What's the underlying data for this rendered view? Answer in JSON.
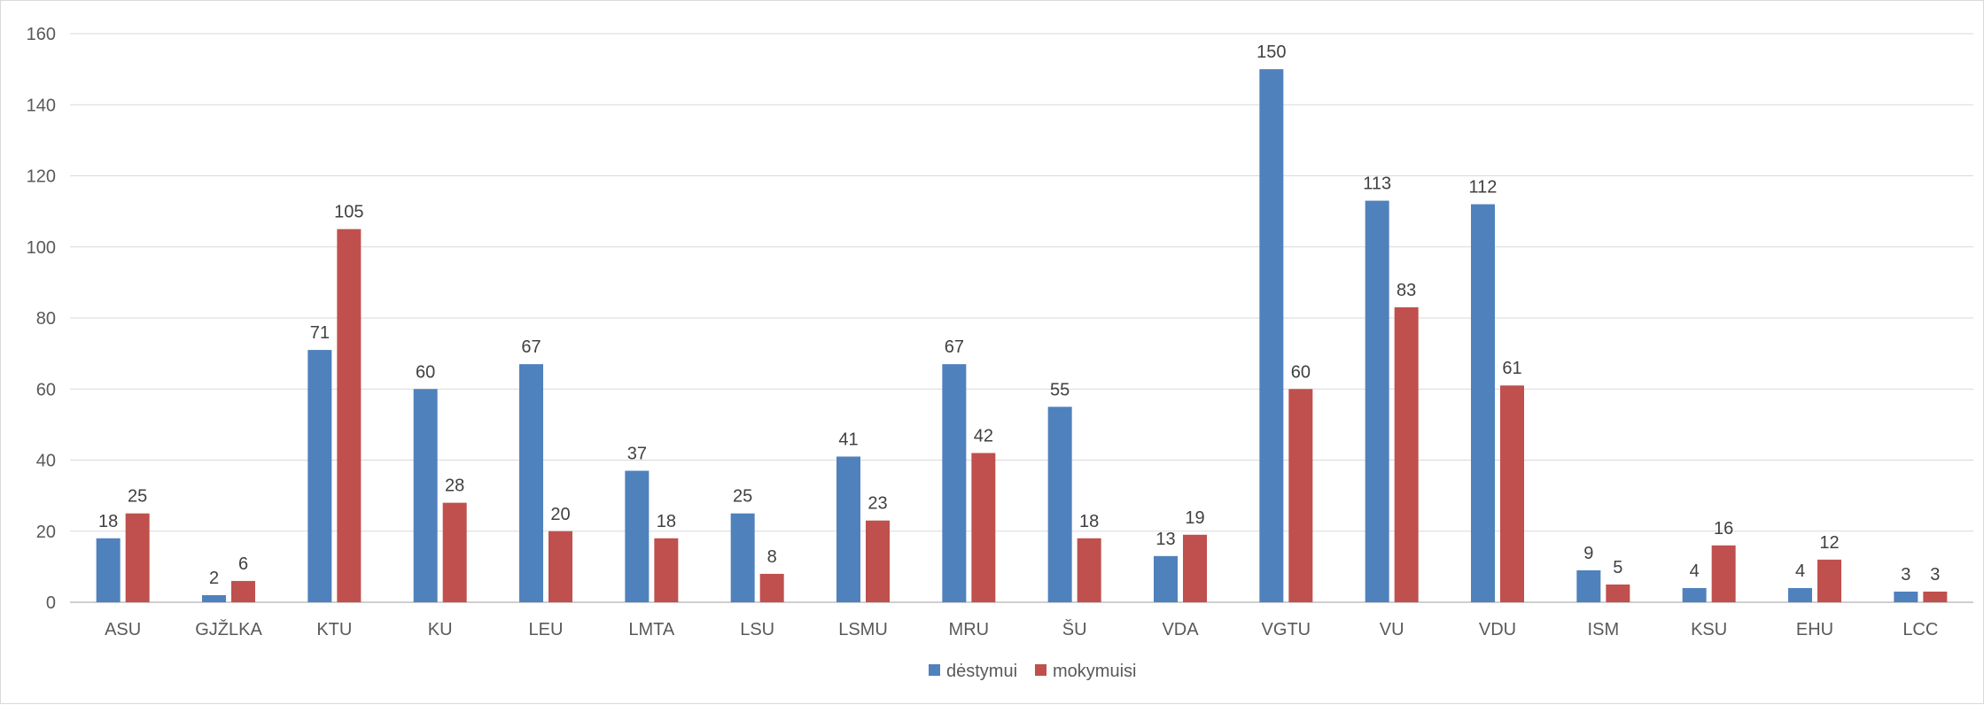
{
  "chart_data": {
    "type": "bar",
    "categories": [
      "ASU",
      "GJŽLKA",
      "KTU",
      "KU",
      "LEU",
      "LMTA",
      "LSU",
      "LSMU",
      "MRU",
      "ŠU",
      "VDA",
      "VGTU",
      "VU",
      "VDU",
      "ISM",
      "KSU",
      "EHU",
      "LCC"
    ],
    "series": [
      {
        "name": "dėstymui",
        "color": "#4f81bd",
        "values": [
          18,
          2,
          71,
          60,
          67,
          37,
          25,
          41,
          67,
          55,
          13,
          150,
          113,
          112,
          9,
          4,
          4,
          3
        ]
      },
      {
        "name": "mokymuisi",
        "color": "#c0504d",
        "values": [
          25,
          6,
          105,
          28,
          20,
          18,
          8,
          23,
          42,
          18,
          19,
          60,
          83,
          61,
          5,
          16,
          12,
          3
        ]
      }
    ],
    "title": "",
    "xlabel": "",
    "ylabel": "",
    "ylim": [
      0,
      160
    ],
    "yticks": [
      0,
      20,
      40,
      60,
      80,
      100,
      120,
      140,
      160
    ],
    "grid": true,
    "legend_position": "bottom-center",
    "data_labels": true
  }
}
